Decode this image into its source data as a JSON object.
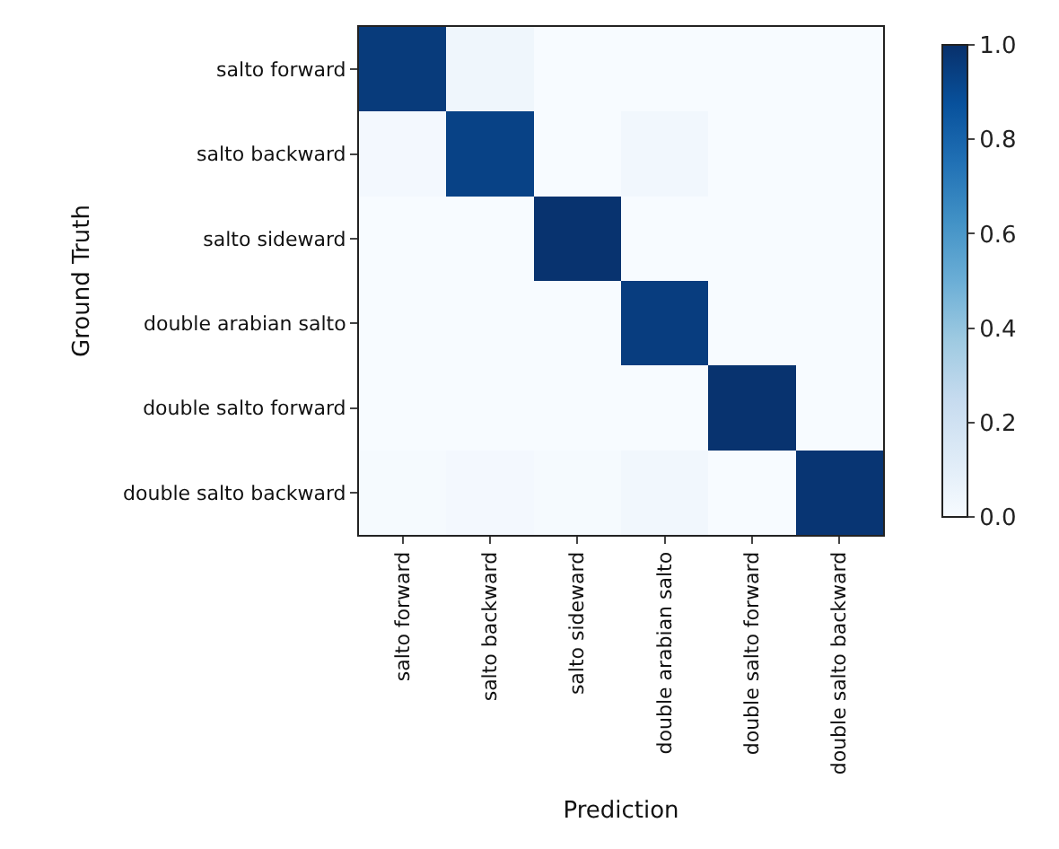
{
  "chart_data": {
    "type": "heatmap",
    "xlabel": "Prediction",
    "ylabel": "Ground Truth",
    "categories": [
      "salto forward",
      "salto backward",
      "salto sideward",
      "double arabian salto",
      "double salto forward",
      "double salto backward"
    ],
    "y_categories": [
      "salto forward",
      "salto backward",
      "salto sideward",
      "double arabian salto",
      "double salto forward",
      "double salto backward"
    ],
    "cells": [
      [
        0.96,
        0.04,
        0.0,
        0.0,
        0.0,
        0.0
      ],
      [
        0.02,
        0.93,
        0.0,
        0.03,
        0.0,
        0.0
      ],
      [
        0.0,
        0.0,
        0.99,
        0.0,
        0.0,
        0.0
      ],
      [
        0.0,
        0.0,
        0.0,
        0.95,
        0.0,
        0.0
      ],
      [
        0.0,
        0.0,
        0.0,
        0.0,
        0.99,
        0.0
      ],
      [
        0.01,
        0.02,
        0.01,
        0.03,
        0.0,
        0.98
      ]
    ],
    "clim": [
      0,
      1
    ],
    "cticks": [
      {
        "value": 0,
        "label": "0.0"
      },
      {
        "value": 0.2,
        "label": "0.2"
      },
      {
        "value": 0.4,
        "label": "0.4"
      },
      {
        "value": 0.6,
        "label": "0.6"
      },
      {
        "value": 0.8,
        "label": "0.8"
      },
      {
        "value": 1,
        "label": "1.0"
      }
    ]
  }
}
